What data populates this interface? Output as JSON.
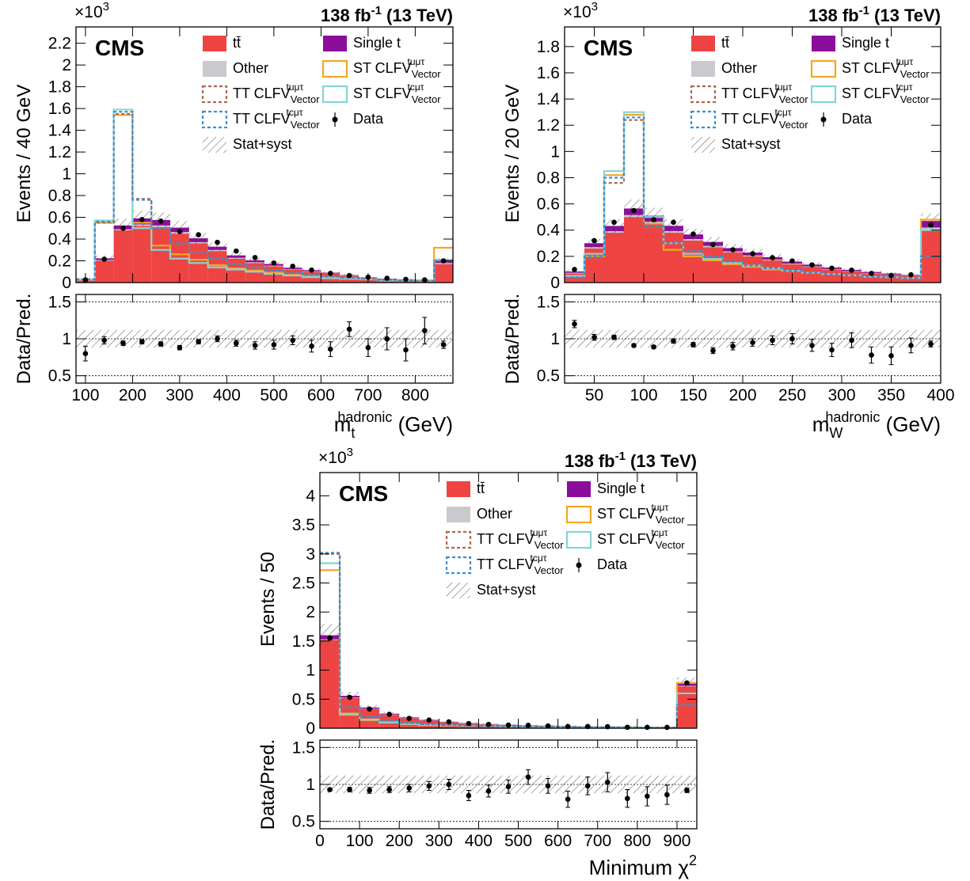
{
  "legend": {
    "ttbar": "tt̄",
    "single_t": "Single t",
    "other": "Other",
    "st_tumt": "ST CLFV",
    "st_tcmt": "ST CLFV",
    "tt_tumt": "TT CLFV",
    "tt_tcmt": "TT CLFV",
    "data": "Data",
    "stat": "Stat+syst",
    "sub_vector": "Vector",
    "sup_tumt": "tuμτ",
    "sup_tcmt": "tcμτ"
  },
  "colors": {
    "ttbar": "#ee4444",
    "single_t": "#8c0c9c",
    "other": "#c9c9cf",
    "st_tumt": "#f5a623",
    "st_tcmt": "#86d4d6",
    "tt_tumt": "#b0694b",
    "tt_tcmt": "#3d8fd1",
    "data": "#000000"
  },
  "chart_data": [
    {
      "type": "bar",
      "cms": "CMS",
      "lumi": "138 fb",
      "lumi_exp": "-1",
      "energy": " (13 TeV)",
      "multiplier": "×10",
      "multiplier_exp": "3",
      "ylabel": "Events / 40 GeV",
      "ratio_ylabel": "Data/Pred.",
      "xlabel_main": "m",
      "xlabel_sub": "t",
      "xlabel_sup": "hadronic",
      "xlabel_unit": " (GeV)",
      "xlim": [
        80,
        880
      ],
      "ylim": [
        0,
        2.35
      ],
      "yticks": [
        0,
        0.2,
        0.4,
        0.6,
        0.8,
        1,
        1.2,
        1.4,
        1.6,
        1.8,
        2,
        2.2
      ],
      "ytick_labels": [
        "0",
        "0.2",
        "0.4",
        "0.6",
        "0.8",
        "1",
        "1.2",
        "1.4",
        "1.6",
        "1.8",
        "2",
        "2.2"
      ],
      "xticks": [
        100,
        200,
        300,
        400,
        500,
        600,
        700,
        800
      ],
      "xtick_labels": [
        "100",
        "200",
        "300",
        "400",
        "500",
        "600",
        "700",
        "800"
      ],
      "bin_edges": [
        80,
        120,
        160,
        200,
        240,
        280,
        320,
        360,
        400,
        440,
        480,
        520,
        560,
        600,
        640,
        680,
        720,
        760,
        800,
        840,
        880
      ],
      "ttbar": [
        0.02,
        0.2,
        0.48,
        0.52,
        0.51,
        0.45,
        0.36,
        0.29,
        0.22,
        0.18,
        0.15,
        0.12,
        0.1,
        0.08,
        0.06,
        0.04,
        0.03,
        0.025,
        0.02,
        0.17
      ],
      "other": [
        0.003,
        0.008,
        0.01,
        0.015,
        0.015,
        0.015,
        0.012,
        0.01,
        0.008,
        0.007,
        0.006,
        0.005,
        0.004,
        0.003,
        0.003,
        0.002,
        0.002,
        0.002,
        0.001,
        0.01
      ],
      "single_t": [
        0.004,
        0.015,
        0.035,
        0.055,
        0.05,
        0.04,
        0.035,
        0.03,
        0.022,
        0.018,
        0.015,
        0.012,
        0.01,
        0.008,
        0.006,
        0.005,
        0.004,
        0.003,
        0.003,
        0.02
      ],
      "st_tumt": [
        0.03,
        0.55,
        1.54,
        0.55,
        0.34,
        0.26,
        0.21,
        0.16,
        0.13,
        0.11,
        0.09,
        0.07,
        0.06,
        0.05,
        0.04,
        0.03,
        0.025,
        0.02,
        0.02,
        0.32
      ],
      "st_tcmt": [
        0.03,
        0.57,
        1.59,
        0.5,
        0.3,
        0.22,
        0.18,
        0.14,
        0.12,
        0.1,
        0.08,
        0.065,
        0.05,
        0.04,
        0.035,
        0.03,
        0.02,
        0.018,
        0.015,
        0.21
      ],
      "tt_tumt": [
        0.03,
        0.55,
        1.55,
        0.77,
        0.5,
        0.36,
        0.28,
        0.22,
        0.17,
        0.14,
        0.11,
        0.09,
        0.07,
        0.055,
        0.045,
        0.035,
        0.025,
        0.02,
        0.017,
        0.2
      ],
      "tt_tcmt": [
        0.03,
        0.56,
        1.57,
        0.76,
        0.5,
        0.36,
        0.28,
        0.22,
        0.17,
        0.14,
        0.11,
        0.09,
        0.07,
        0.055,
        0.045,
        0.035,
        0.025,
        0.02,
        0.017,
        0.2
      ],
      "data": [
        0.025,
        0.215,
        0.5,
        0.58,
        0.565,
        0.47,
        0.44,
        0.37,
        0.29,
        0.23,
        0.18,
        0.15,
        0.115,
        0.085,
        0.065,
        0.05,
        0.04,
        0.03,
        0.025,
        0.2
      ],
      "stat_frac": 0.12,
      "ratio_ylim": [
        0.4,
        1.6
      ],
      "ratio_yticks": [
        0.5,
        1,
        1.5
      ],
      "ratio_ytick_labels": [
        "0.5",
        "1",
        "1.5"
      ],
      "ratio": [
        0.8,
        0.98,
        0.94,
        0.96,
        0.93,
        0.88,
        0.96,
        1.0,
        0.94,
        0.91,
        0.92,
        0.98,
        0.9,
        0.86,
        1.13,
        0.88,
        1.0,
        0.85,
        1.11,
        0.92
      ],
      "ratio_err": [
        0.1,
        0.05,
        0.03,
        0.03,
        0.03,
        0.03,
        0.03,
        0.04,
        0.04,
        0.05,
        0.06,
        0.06,
        0.08,
        0.1,
        0.1,
        0.12,
        0.15,
        0.15,
        0.18,
        0.05
      ]
    },
    {
      "type": "bar",
      "cms": "CMS",
      "lumi": "138 fb",
      "lumi_exp": "-1",
      "energy": " (13 TeV)",
      "multiplier": "×10",
      "multiplier_exp": "3",
      "ylabel": "Events / 20 GeV",
      "ratio_ylabel": "Data/Pred.",
      "xlabel_main": "m",
      "xlabel_sub": "W",
      "xlabel_sup": "hadronic",
      "xlabel_unit": " (GeV)",
      "xlim": [
        20,
        400
      ],
      "ylim": [
        0,
        1.95
      ],
      "yticks": [
        0,
        0.2,
        0.4,
        0.6,
        0.8,
        1,
        1.2,
        1.4,
        1.6,
        1.8
      ],
      "ytick_labels": [
        "0",
        "0.2",
        "0.4",
        "0.6",
        "0.8",
        "1",
        "1.2",
        "1.4",
        "1.6",
        "1.8"
      ],
      "xticks": [
        50,
        100,
        150,
        200,
        250,
        300,
        350,
        400
      ],
      "xtick_labels": [
        "50",
        "100",
        "150",
        "200",
        "250",
        "300",
        "350",
        "400"
      ],
      "bin_edges": [
        20,
        40,
        60,
        80,
        100,
        120,
        140,
        160,
        180,
        200,
        220,
        240,
        260,
        280,
        300,
        320,
        340,
        360,
        380,
        400
      ],
      "ttbar": [
        0.07,
        0.26,
        0.38,
        0.5,
        0.45,
        0.38,
        0.32,
        0.27,
        0.23,
        0.2,
        0.17,
        0.14,
        0.12,
        0.1,
        0.085,
        0.07,
        0.06,
        0.05,
        0.4
      ],
      "other": [
        0.005,
        0.01,
        0.012,
        0.015,
        0.015,
        0.013,
        0.012,
        0.01,
        0.008,
        0.007,
        0.006,
        0.005,
        0.004,
        0.004,
        0.003,
        0.003,
        0.002,
        0.002,
        0.02
      ],
      "single_t": [
        0.01,
        0.03,
        0.04,
        0.05,
        0.045,
        0.04,
        0.035,
        0.03,
        0.025,
        0.022,
        0.018,
        0.015,
        0.013,
        0.011,
        0.009,
        0.008,
        0.007,
        0.006,
        0.05
      ],
      "st_tumt": [
        0.05,
        0.2,
        0.82,
        1.28,
        0.45,
        0.25,
        0.2,
        0.17,
        0.14,
        0.12,
        0.1,
        0.09,
        0.075,
        0.065,
        0.055,
        0.045,
        0.04,
        0.035,
        0.48
      ],
      "st_tcmt": [
        0.05,
        0.22,
        0.85,
        1.3,
        0.5,
        0.3,
        0.22,
        0.18,
        0.15,
        0.13,
        0.11,
        0.09,
        0.075,
        0.065,
        0.055,
        0.045,
        0.04,
        0.035,
        0.4
      ],
      "tt_tumt": [
        0.04,
        0.19,
        0.76,
        1.24,
        0.42,
        0.3,
        0.24,
        0.2,
        0.16,
        0.13,
        0.11,
        0.09,
        0.075,
        0.065,
        0.055,
        0.045,
        0.04,
        0.035,
        0.2
      ],
      "tt_tcmt": [
        0.04,
        0.2,
        0.8,
        1.26,
        0.43,
        0.3,
        0.24,
        0.2,
        0.16,
        0.13,
        0.11,
        0.09,
        0.075,
        0.065,
        0.055,
        0.045,
        0.04,
        0.035,
        0.2
      ],
      "data": [
        0.1,
        0.32,
        0.46,
        0.55,
        0.48,
        0.46,
        0.37,
        0.29,
        0.25,
        0.22,
        0.19,
        0.165,
        0.135,
        0.11,
        0.095,
        0.07,
        0.055,
        0.06,
        0.44
      ],
      "stat_frac": 0.12,
      "ratio_ylim": [
        0.4,
        1.6
      ],
      "ratio_yticks": [
        0.5,
        1,
        1.5
      ],
      "ratio_ytick_labels": [
        "0.5",
        "1",
        "1.5"
      ],
      "ratio": [
        1.2,
        1.02,
        1.02,
        0.91,
        0.89,
        0.97,
        0.92,
        0.84,
        0.9,
        0.95,
        0.98,
        1.0,
        0.91,
        0.85,
        0.98,
        0.78,
        0.77,
        0.91,
        0.93
      ],
      "ratio_err": [
        0.05,
        0.04,
        0.03,
        0.02,
        0.02,
        0.03,
        0.03,
        0.04,
        0.05,
        0.05,
        0.06,
        0.07,
        0.08,
        0.09,
        0.1,
        0.11,
        0.12,
        0.1,
        0.04
      ]
    },
    {
      "type": "bar",
      "cms": "CMS",
      "lumi": "138 fb",
      "lumi_exp": "-1",
      "energy": " (13 TeV)",
      "multiplier": "×10",
      "multiplier_exp": "3",
      "ylabel": "Events / 50",
      "ratio_ylabel": "Data/Pred.",
      "xlabel_main": "Minimum χ",
      "xlabel_sub": "",
      "xlabel_sup": "2",
      "xlabel_unit": "",
      "xlim": [
        0,
        950
      ],
      "ylim": [
        0,
        4.4
      ],
      "yticks": [
        0,
        0.5,
        1,
        1.5,
        2,
        2.5,
        3,
        3.5,
        4
      ],
      "ytick_labels": [
        "0",
        "0.5",
        "1",
        "1.5",
        "2",
        "2.5",
        "3",
        "3.5",
        "4"
      ],
      "xticks": [
        0,
        100,
        200,
        300,
        400,
        500,
        600,
        700,
        800,
        900
      ],
      "xtick_labels": [
        "0",
        "100",
        "200",
        "300",
        "400",
        "500",
        "600",
        "700",
        "800",
        "900"
      ],
      "bin_edges": [
        0,
        50,
        100,
        150,
        200,
        250,
        300,
        350,
        400,
        450,
        500,
        550,
        600,
        650,
        700,
        750,
        800,
        850,
        900,
        950
      ],
      "ttbar": [
        1.52,
        0.52,
        0.33,
        0.23,
        0.17,
        0.13,
        0.1,
        0.08,
        0.065,
        0.055,
        0.045,
        0.04,
        0.035,
        0.03,
        0.025,
        0.02,
        0.018,
        0.016,
        0.72
      ],
      "other": [
        0.01,
        0.008,
        0.006,
        0.005,
        0.004,
        0.003,
        0.003,
        0.002,
        0.002,
        0.002,
        0.002,
        0.001,
        0.001,
        0.001,
        0.001,
        0.001,
        0.001,
        0.001,
        0.01
      ],
      "single_t": [
        0.07,
        0.03,
        0.02,
        0.015,
        0.012,
        0.01,
        0.008,
        0.006,
        0.005,
        0.004,
        0.004,
        0.003,
        0.003,
        0.002,
        0.002,
        0.002,
        0.002,
        0.002,
        0.05
      ],
      "st_tumt": [
        2.72,
        0.23,
        0.14,
        0.1,
        0.07,
        0.055,
        0.045,
        0.04,
        0.035,
        0.03,
        0.025,
        0.02,
        0.02,
        0.018,
        0.015,
        0.015,
        0.012,
        0.012,
        0.78
      ],
      "st_tcmt": [
        2.84,
        0.25,
        0.15,
        0.1,
        0.075,
        0.06,
        0.05,
        0.04,
        0.035,
        0.03,
        0.025,
        0.02,
        0.02,
        0.018,
        0.015,
        0.015,
        0.012,
        0.012,
        0.6
      ],
      "tt_tumt": [
        3.0,
        0.36,
        0.2,
        0.13,
        0.09,
        0.07,
        0.055,
        0.045,
        0.038,
        0.032,
        0.027,
        0.023,
        0.02,
        0.018,
        0.016,
        0.014,
        0.012,
        0.011,
        0.4
      ],
      "tt_tcmt": [
        3.02,
        0.36,
        0.2,
        0.13,
        0.09,
        0.07,
        0.055,
        0.045,
        0.038,
        0.032,
        0.027,
        0.023,
        0.02,
        0.018,
        0.016,
        0.014,
        0.012,
        0.011,
        0.4
      ],
      "data": [
        1.55,
        0.53,
        0.33,
        0.24,
        0.17,
        0.14,
        0.11,
        0.08,
        0.065,
        0.055,
        0.05,
        0.04,
        0.03,
        0.03,
        0.026,
        0.017,
        0.016,
        0.015,
        0.78
      ],
      "stat_frac": 0.12,
      "ratio_ylim": [
        0.4,
        1.6
      ],
      "ratio_yticks": [
        0.5,
        1,
        1.5
      ],
      "ratio_ytick_labels": [
        "0.5",
        "1",
        "1.5"
      ],
      "ratio": [
        0.93,
        0.93,
        0.92,
        0.93,
        0.95,
        0.98,
        1.0,
        0.85,
        0.91,
        0.97,
        1.1,
        0.98,
        0.8,
        0.98,
        1.03,
        0.81,
        0.84,
        0.86,
        0.92
      ],
      "ratio_err": [
        0.02,
        0.03,
        0.04,
        0.04,
        0.05,
        0.06,
        0.07,
        0.07,
        0.08,
        0.09,
        0.1,
        0.1,
        0.11,
        0.12,
        0.13,
        0.12,
        0.13,
        0.13,
        0.03
      ]
    }
  ]
}
